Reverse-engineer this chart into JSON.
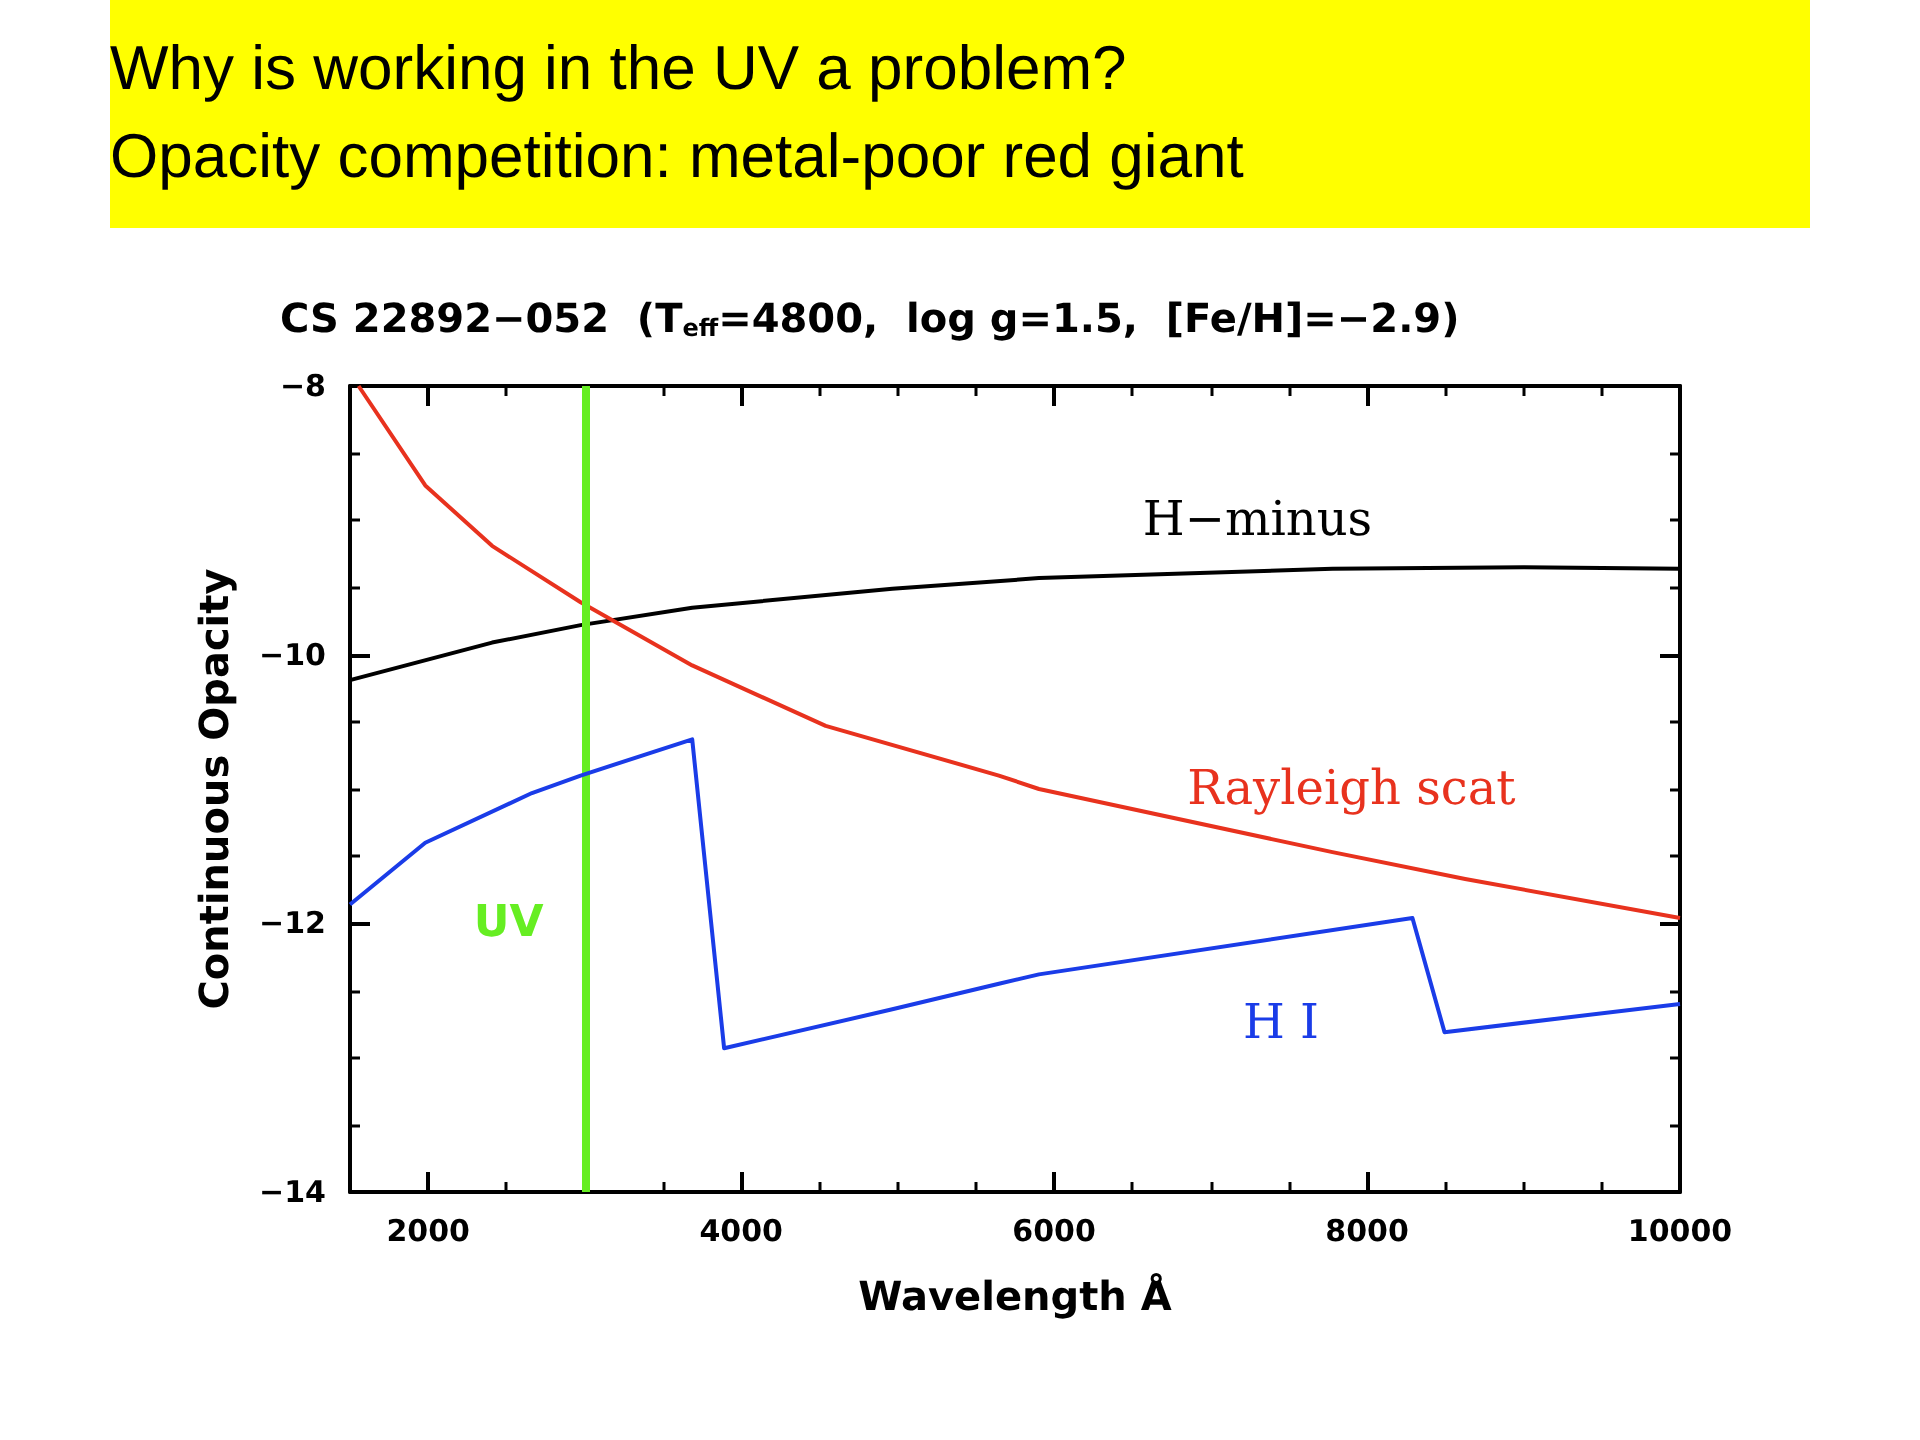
{
  "chart_data": {
    "type": "line",
    "title": "Why is working in the UV a problem?\nOpacity competition: metal-poor red giant",
    "subtitle": "CS 22892−052  (T$_{eff}$=4800,  log g=1.5,  [Fe/H]=−2.9)",
    "xlabel": "Wavelength Å",
    "ylabel": "Continuous Opacity",
    "xlim": [
      1500,
      10000
    ],
    "xticks": [
      2000,
      4000,
      6000,
      8000,
      10000
    ],
    "ylim": [
      -14,
      -8
    ],
    "yticks": [
      -14,
      -12,
      -10,
      -8
    ],
    "grid": false,
    "legend": false,
    "marker": "none",
    "line_style": "solid",
    "series": [
      {
        "name": "H−minus",
        "color": "#000000",
        "x": [
          1500,
          2408,
          2974,
          3687,
          4966,
          5903,
          7779,
          9000,
          10000
        ],
        "values": [
          -10.19,
          -9.91,
          -9.78,
          -9.65,
          -9.51,
          -9.43,
          -9.36,
          -9.35,
          -9.36
        ]
      },
      {
        "name": "Rayleigh scat",
        "color": "#e8321e",
        "x": [
          1555,
          1981,
          2408,
          2974,
          3687,
          4540,
          5647,
          5903,
          7779,
          8627,
          10000
        ],
        "values": [
          -8.0,
          -8.74,
          -9.19,
          -9.61,
          -10.08,
          -10.53,
          -10.9,
          -11.0,
          -11.47,
          -11.67,
          -11.96
        ]
      },
      {
        "name": "H I",
        "color": "#1a3ce8",
        "x": [
          1500,
          1981,
          2663,
          2974,
          3687,
          3891,
          4966,
          5647,
          5903,
          8290,
          8495,
          10000
        ],
        "values": [
          -11.86,
          -11.4,
          -11.03,
          -10.9,
          -10.63,
          -12.93,
          -12.64,
          -12.45,
          -12.38,
          -11.96,
          -12.81,
          -12.6
        ]
      }
    ],
    "ref_lines": [
      {
        "axis": "x",
        "value": 3000,
        "label": "UV",
        "color": "#66ee22"
      }
    ]
  }
}
